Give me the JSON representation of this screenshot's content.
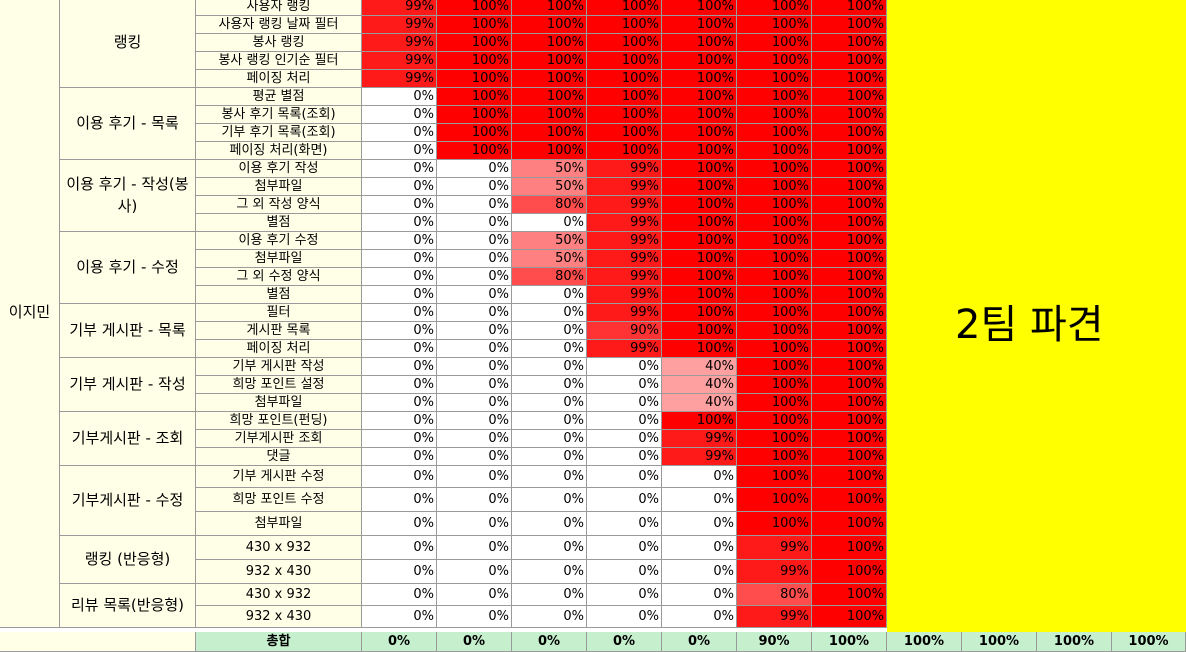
{
  "owner": "이지민",
  "yellow_note": "2팀 파견",
  "colors": {
    "full": "#ff0000",
    "p99": "#ff1a1a",
    "p90": "#ff3333",
    "p80": "#ff4d4d",
    "p50": "#ff8080",
    "p40": "#ffa0a0",
    "zero": "#ffffff",
    "yellow": "#ffff00",
    "total": "#c6efce",
    "label_bg": "#ffffe8"
  },
  "groups": [
    {
      "label": "랭킹",
      "rows": [
        {
          "feature": "사용자 랭킹",
          "values": [
            "99%",
            "100%",
            "100%",
            "100%",
            "100%",
            "100%",
            "100%"
          ]
        },
        {
          "feature": "사용자 랭킹 날짜 필터",
          "values": [
            "99%",
            "100%",
            "100%",
            "100%",
            "100%",
            "100%",
            "100%"
          ]
        },
        {
          "feature": "봉사 랭킹",
          "values": [
            "99%",
            "100%",
            "100%",
            "100%",
            "100%",
            "100%",
            "100%"
          ]
        },
        {
          "feature": "봉사 랭킹 인기순 필터",
          "values": [
            "99%",
            "100%",
            "100%",
            "100%",
            "100%",
            "100%",
            "100%"
          ]
        },
        {
          "feature": "페이징 처리",
          "values": [
            "99%",
            "100%",
            "100%",
            "100%",
            "100%",
            "100%",
            "100%"
          ]
        }
      ]
    },
    {
      "label": "이용 후기 - 목록",
      "rows": [
        {
          "feature": "평균 별점",
          "values": [
            "0%",
            "100%",
            "100%",
            "100%",
            "100%",
            "100%",
            "100%"
          ]
        },
        {
          "feature": "봉사 후기 목록(조회)",
          "values": [
            "0%",
            "100%",
            "100%",
            "100%",
            "100%",
            "100%",
            "100%"
          ]
        },
        {
          "feature": "기부 후기 목록(조회)",
          "values": [
            "0%",
            "100%",
            "100%",
            "100%",
            "100%",
            "100%",
            "100%"
          ]
        },
        {
          "feature": "페이징 처리(화면)",
          "values": [
            "0%",
            "100%",
            "100%",
            "100%",
            "100%",
            "100%",
            "100%"
          ]
        }
      ]
    },
    {
      "label": "이용 후기 - 작성(봉사)",
      "rows": [
        {
          "feature": "이용 후기 작성",
          "values": [
            "0%",
            "0%",
            "50%",
            "99%",
            "100%",
            "100%",
            "100%"
          ]
        },
        {
          "feature": "첨부파일",
          "values": [
            "0%",
            "0%",
            "50%",
            "99%",
            "100%",
            "100%",
            "100%"
          ]
        },
        {
          "feature": "그 외 작성 양식",
          "values": [
            "0%",
            "0%",
            "80%",
            "99%",
            "100%",
            "100%",
            "100%"
          ]
        },
        {
          "feature": "별점",
          "values": [
            "0%",
            "0%",
            "0%",
            "99%",
            "100%",
            "100%",
            "100%"
          ]
        }
      ]
    },
    {
      "label": "이용 후기 - 수정",
      "rows": [
        {
          "feature": "이용 후기 수정",
          "values": [
            "0%",
            "0%",
            "50%",
            "99%",
            "100%",
            "100%",
            "100%"
          ]
        },
        {
          "feature": "첨부파일",
          "values": [
            "0%",
            "0%",
            "50%",
            "99%",
            "100%",
            "100%",
            "100%"
          ]
        },
        {
          "feature": "그 외 수정 양식",
          "values": [
            "0%",
            "0%",
            "80%",
            "99%",
            "100%",
            "100%",
            "100%"
          ]
        },
        {
          "feature": "별점",
          "values": [
            "0%",
            "0%",
            "0%",
            "99%",
            "100%",
            "100%",
            "100%"
          ]
        }
      ]
    },
    {
      "label": "기부 게시판 - 목록",
      "rows": [
        {
          "feature": "필터",
          "values": [
            "0%",
            "0%",
            "0%",
            "99%",
            "100%",
            "100%",
            "100%"
          ]
        },
        {
          "feature": "게시판 목록",
          "values": [
            "0%",
            "0%",
            "0%",
            "90%",
            "100%",
            "100%",
            "100%"
          ]
        },
        {
          "feature": "페이징 처리",
          "values": [
            "0%",
            "0%",
            "0%",
            "99%",
            "100%",
            "100%",
            "100%"
          ]
        }
      ]
    },
    {
      "label": "기부 게시판 - 작성",
      "rows": [
        {
          "feature": "기부 게시판 작성",
          "values": [
            "0%",
            "0%",
            "0%",
            "0%",
            "40%",
            "100%",
            "100%"
          ]
        },
        {
          "feature": "희망 포인트 설정",
          "values": [
            "0%",
            "0%",
            "0%",
            "0%",
            "40%",
            "100%",
            "100%"
          ]
        },
        {
          "feature": "첨부파일",
          "values": [
            "0%",
            "0%",
            "0%",
            "0%",
            "40%",
            "100%",
            "100%"
          ]
        }
      ]
    },
    {
      "label": "기부게시판 - 조회",
      "rows": [
        {
          "feature": "희망 포인트(펀딩)",
          "values": [
            "0%",
            "0%",
            "0%",
            "0%",
            "100%",
            "100%",
            "100%"
          ]
        },
        {
          "feature": "기부게시판 조회",
          "values": [
            "0%",
            "0%",
            "0%",
            "0%",
            "99%",
            "100%",
            "100%"
          ]
        },
        {
          "feature": "댓글",
          "values": [
            "0%",
            "0%",
            "0%",
            "0%",
            "99%",
            "100%",
            "100%"
          ]
        }
      ]
    },
    {
      "label": "기부게시판 - 수정",
      "rows": [
        {
          "feature": "기부 게시판 수정",
          "values": [
            "0%",
            "0%",
            "0%",
            "0%",
            "0%",
            "100%",
            "100%"
          ]
        },
        {
          "feature": "희망 포인트 수정",
          "values": [
            "0%",
            "0%",
            "0%",
            "0%",
            "0%",
            "100%",
            "100%"
          ]
        },
        {
          "feature": "첨부파일",
          "values": [
            "0%",
            "0%",
            "0%",
            "0%",
            "0%",
            "100%",
            "100%"
          ]
        }
      ]
    },
    {
      "label": "랭킹 (반응형)",
      "rows": [
        {
          "feature": "430 x 932",
          "values": [
            "0%",
            "0%",
            "0%",
            "0%",
            "0%",
            "99%",
            "100%"
          ]
        },
        {
          "feature": "932 x 430",
          "values": [
            "0%",
            "0%",
            "0%",
            "0%",
            "0%",
            "99%",
            "100%"
          ]
        }
      ]
    },
    {
      "label": "리뷰 목록(반응형)",
      "rows": [
        {
          "feature": "430 x 932",
          "values": [
            "0%",
            "0%",
            "0%",
            "0%",
            "0%",
            "80%",
            "100%"
          ]
        },
        {
          "feature": "932 x 430",
          "values": [
            "0%",
            "0%",
            "0%",
            "0%",
            "0%",
            "99%",
            "100%"
          ]
        }
      ]
    }
  ],
  "total": {
    "label": "총합",
    "values": [
      "0%",
      "0%",
      "0%",
      "0%",
      "0%",
      "90%",
      "100%",
      "100%",
      "100%",
      "100%",
      "100%"
    ]
  }
}
